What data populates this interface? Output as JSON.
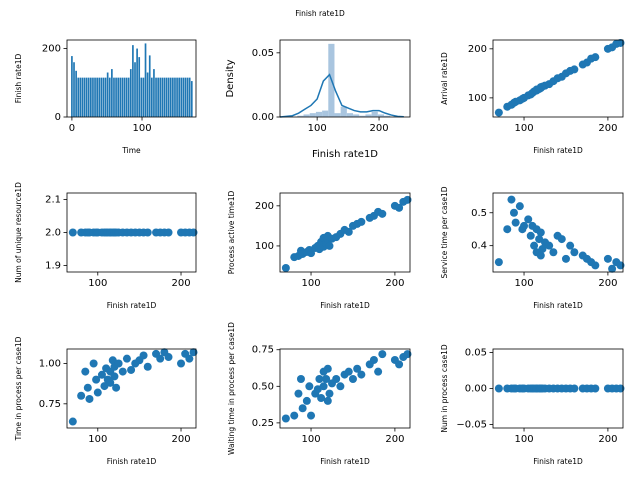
{
  "title": "Finish rate1D",
  "chart_data": [
    {
      "type": "bar",
      "xlabel": "Time",
      "ylabel": "Finish rate1D",
      "color": "#1f77b4",
      "x": [
        0,
        3,
        6,
        9,
        12,
        15,
        18,
        21,
        24,
        27,
        30,
        33,
        36,
        39,
        42,
        45,
        48,
        51,
        54,
        57,
        60,
        63,
        66,
        69,
        72,
        75,
        78,
        81,
        84,
        87,
        90,
        93,
        96,
        99,
        102,
        105,
        108,
        111,
        114,
        117,
        120,
        123,
        126,
        129,
        132,
        135,
        138,
        141,
        144,
        147,
        150,
        153,
        156,
        159,
        162,
        165,
        168,
        171
      ],
      "values": [
        178,
        160,
        135,
        115,
        115,
        115,
        115,
        115,
        115,
        115,
        115,
        115,
        115,
        115,
        115,
        115,
        115,
        130,
        115,
        140,
        115,
        115,
        115,
        115,
        115,
        115,
        115,
        115,
        140,
        210,
        160,
        200,
        175,
        115,
        115,
        215,
        130,
        180,
        115,
        140,
        115,
        115,
        115,
        115,
        115,
        115,
        115,
        115,
        115,
        115,
        115,
        115,
        115,
        115,
        115,
        115,
        115,
        105
      ],
      "xlim": [
        -7,
        177
      ],
      "xticks": [
        0,
        100
      ],
      "ylim": [
        0,
        225
      ],
      "yticks": [
        0,
        200
      ]
    },
    {
      "type": "histogram",
      "xlabel": "Finish rate1D",
      "ylabel": "Density",
      "color": "#a9c5df",
      "bins": [
        68,
        78,
        88,
        98,
        108,
        118,
        128,
        138,
        148,
        158,
        168,
        178,
        188,
        198,
        208,
        218
      ],
      "values": [
        0.001,
        0.002,
        0.003,
        0.004,
        0.005,
        0.057,
        0.003,
        0.008,
        0.003,
        0.002,
        0.001,
        0.002,
        0.004,
        0.002,
        0.001
      ],
      "kde": {
        "color": "#1f77b4",
        "x": [
          40,
          50,
          60,
          70,
          80,
          90,
          100,
          110,
          120,
          130,
          140,
          150,
          160,
          170,
          180,
          190,
          200,
          210,
          220,
          230,
          240
        ],
        "values": [
          0,
          0.0005,
          0.001,
          0.003,
          0.006,
          0.009,
          0.014,
          0.028,
          0.033,
          0.02,
          0.009,
          0.007,
          0.005,
          0.004,
          0.004,
          0.005,
          0.005,
          0.003,
          0.0015,
          0.0005,
          0.0002
        ]
      },
      "xlim": [
        40,
        250
      ],
      "xticks": [
        100,
        200
      ],
      "ylim": [
        0,
        0.06
      ],
      "yticks": [
        {
          "value": 0,
          "label": "0.00"
        },
        0.05
      ]
    },
    {
      "type": "scatter",
      "xlabel": "Finish rate1D",
      "ylabel": "Arrival rate1D",
      "color": "#1f77b4",
      "x": [
        70,
        80,
        85,
        88,
        90,
        95,
        98,
        100,
        105,
        108,
        110,
        112,
        115,
        115,
        118,
        120,
        120,
        122,
        125,
        130,
        135,
        140,
        145,
        150,
        155,
        160,
        170,
        175,
        180,
        185,
        200,
        205,
        210,
        215
      ],
      "values": [
        70,
        82,
        86,
        90,
        92,
        95,
        98,
        100,
        105,
        107,
        110,
        113,
        115,
        117,
        118,
        120,
        122,
        123,
        125,
        128,
        134,
        140,
        143,
        150,
        155,
        158,
        168,
        172,
        180,
        183,
        200,
        203,
        210,
        212
      ],
      "xlim": [
        63,
        218
      ],
      "xticks": [
        100,
        200
      ],
      "ylim": [
        61,
        218
      ],
      "yticks": [
        100,
        200
      ]
    },
    {
      "type": "scatter",
      "xlabel": "Finish rate1D",
      "ylabel": "Num of unique resource1D",
      "color": "#1f77b4",
      "x": [
        70,
        80,
        85,
        88,
        90,
        95,
        98,
        100,
        105,
        108,
        110,
        112,
        115,
        115,
        118,
        120,
        120,
        122,
        125,
        130,
        135,
        140,
        145,
        150,
        155,
        160,
        170,
        175,
        180,
        185,
        200,
        205,
        210,
        215
      ],
      "values": [
        2,
        2,
        2,
        2,
        2,
        2,
        2,
        2,
        2,
        2,
        2,
        2,
        2,
        2,
        2,
        2,
        2,
        2,
        2,
        2,
        2,
        2,
        2,
        2,
        2,
        2,
        2,
        2,
        2,
        2,
        2,
        2,
        2,
        2
      ],
      "xlim": [
        63,
        218
      ],
      "xticks": [
        100,
        200
      ],
      "ylim": [
        1.88,
        2.12
      ],
      "yticks": [
        1.9,
        {
          "value": 2,
          "label": "2.0"
        },
        2.1
      ]
    },
    {
      "type": "scatter",
      "xlabel": "Finish rate1D",
      "ylabel": "Process active time1D",
      "color": "#1f77b4",
      "x": [
        70,
        80,
        85,
        88,
        90,
        95,
        98,
        100,
        105,
        108,
        110,
        112,
        115,
        115,
        118,
        120,
        120,
        122,
        125,
        130,
        135,
        140,
        145,
        150,
        155,
        160,
        170,
        175,
        180,
        185,
        200,
        205,
        210,
        215
      ],
      "values": [
        45,
        72,
        75,
        88,
        80,
        85,
        90,
        82,
        95,
        100,
        92,
        110,
        98,
        120,
        105,
        115,
        125,
        100,
        118,
        122,
        130,
        140,
        135,
        150,
        155,
        160,
        170,
        175,
        185,
        180,
        200,
        195,
        210,
        215
      ],
      "xlim": [
        63,
        218
      ],
      "xticks": [
        100,
        200
      ],
      "ylim": [
        35,
        232
      ],
      "yticks": [
        100,
        200
      ]
    },
    {
      "type": "scatter",
      "xlabel": "Finish rate1D",
      "ylabel": "Service time per case1D",
      "color": "#1f77b4",
      "x": [
        70,
        80,
        85,
        88,
        90,
        95,
        98,
        100,
        105,
        108,
        110,
        112,
        115,
        115,
        118,
        120,
        120,
        122,
        125,
        130,
        135,
        140,
        145,
        150,
        155,
        160,
        170,
        175,
        180,
        185,
        200,
        205,
        210,
        215
      ],
      "values": [
        0.35,
        0.45,
        0.54,
        0.5,
        0.47,
        0.52,
        0.45,
        0.46,
        0.48,
        0.43,
        0.46,
        0.4,
        0.45,
        0.38,
        0.42,
        0.37,
        0.44,
        0.39,
        0.41,
        0.4,
        0.38,
        0.43,
        0.42,
        0.36,
        0.4,
        0.38,
        0.37,
        0.36,
        0.35,
        0.34,
        0.36,
        0.33,
        0.35,
        0.34
      ],
      "xlim": [
        63,
        218
      ],
      "xticks": [
        100,
        200
      ],
      "ylim": [
        0.32,
        0.56
      ],
      "yticks": [
        0.4,
        0.5
      ]
    },
    {
      "type": "scatter",
      "xlabel": "Finish rate1D",
      "ylabel": "Time in process per case1D",
      "color": "#1f77b4",
      "x": [
        70,
        80,
        85,
        88,
        90,
        95,
        98,
        100,
        105,
        108,
        110,
        112,
        115,
        115,
        118,
        120,
        120,
        122,
        125,
        130,
        135,
        140,
        145,
        150,
        155,
        160,
        170,
        175,
        180,
        185,
        200,
        205,
        210,
        215
      ],
      "values": [
        0.64,
        0.8,
        0.95,
        0.85,
        0.78,
        1.0,
        0.9,
        0.82,
        0.93,
        0.86,
        0.97,
        0.9,
        0.95,
        0.88,
        1.02,
        0.92,
        0.98,
        0.85,
        1.0,
        0.95,
        1.03,
        0.96,
        1.0,
        1.02,
        1.05,
        0.98,
        1.06,
        1.03,
        1.07,
        1.04,
        1.0,
        1.06,
        1.03,
        1.07
      ],
      "xlim": [
        63,
        218
      ],
      "xticks": [
        100,
        200
      ],
      "ylim": [
        0.6,
        1.09
      ],
      "yticks": [
        0.75,
        {
          "value": 1,
          "label": "1.00"
        }
      ]
    },
    {
      "type": "scatter",
      "xlabel": "Finish rate1D",
      "ylabel": "Waiting time in process per case1D",
      "color": "#1f77b4",
      "x": [
        70,
        80,
        85,
        88,
        90,
        95,
        98,
        100,
        105,
        108,
        110,
        112,
        115,
        115,
        118,
        120,
        120,
        122,
        125,
        130,
        135,
        140,
        145,
        150,
        155,
        160,
        170,
        175,
        180,
        185,
        200,
        205,
        210,
        215
      ],
      "values": [
        0.28,
        0.3,
        0.45,
        0.55,
        0.35,
        0.4,
        0.5,
        0.3,
        0.45,
        0.48,
        0.55,
        0.42,
        0.6,
        0.5,
        0.55,
        0.4,
        0.62,
        0.45,
        0.52,
        0.55,
        0.5,
        0.58,
        0.6,
        0.55,
        0.62,
        0.58,
        0.65,
        0.68,
        0.6,
        0.72,
        0.68,
        0.65,
        0.7,
        0.72
      ],
      "xlim": [
        63,
        218
      ],
      "xticks": [
        100,
        200
      ],
      "ylim": [
        0.215,
        0.755
      ],
      "yticks": [
        0.25,
        {
          "value": 0.5,
          "label": "0.50"
        },
        0.75
      ]
    },
    {
      "type": "scatter",
      "xlabel": "Finish rate1D",
      "ylabel": "Num in process case1D",
      "color": "#1f77b4",
      "x": [
        70,
        80,
        85,
        88,
        90,
        95,
        98,
        100,
        105,
        108,
        110,
        112,
        115,
        115,
        118,
        120,
        120,
        122,
        125,
        130,
        135,
        140,
        145,
        150,
        155,
        160,
        170,
        175,
        180,
        185,
        200,
        205,
        210,
        215
      ],
      "values": [
        0,
        0,
        0,
        0,
        0,
        0,
        0,
        0,
        0,
        0,
        0,
        0,
        0,
        0,
        0,
        0,
        0,
        0,
        0,
        0,
        0,
        0,
        0,
        0,
        0,
        0,
        0,
        0,
        0,
        0,
        0,
        0,
        0,
        0
      ],
      "xlim": [
        63,
        218
      ],
      "xticks": [
        100,
        200
      ],
      "ylim": [
        -0.055,
        0.055
      ],
      "yticks": [
        {
          "value": -0.05,
          "label": "−0.05"
        },
        {
          "value": 0,
          "label": "0.00"
        },
        0.05
      ]
    }
  ]
}
